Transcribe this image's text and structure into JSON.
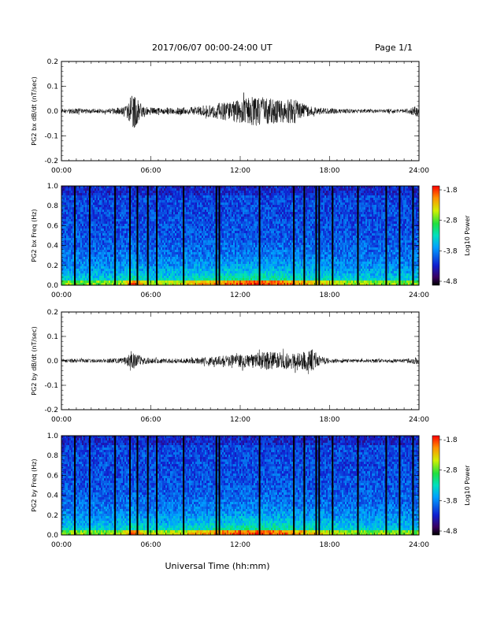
{
  "header": {
    "title": "2017/06/07  00:00-24:00 UT",
    "page": "Page 1/1"
  },
  "footer": {
    "xlabel": "Universal Time (hh:mm)"
  },
  "chart_data": [
    {
      "type": "line",
      "name": "bx-waveform",
      "ylabel": "PG2 bx dB/dt (nT/sec)",
      "x_ticks": [
        "00:00",
        "06:00",
        "12:00",
        "18:00",
        "24:00"
      ],
      "y_ticks": [
        "0.2",
        "0.1",
        "0.0",
        "-0.1",
        "-0.2"
      ],
      "xlim_hours": [
        0,
        24
      ],
      "ylim": [
        -0.2,
        0.2
      ],
      "envelope": {
        "x_hours": [
          0,
          1,
          2,
          3,
          4,
          4.5,
          4.8,
          5.2,
          5.6,
          6,
          7,
          8,
          9,
          10,
          11,
          12,
          12.5,
          13,
          14,
          15,
          15.5,
          16,
          16.5,
          17,
          18,
          19,
          20,
          21,
          22,
          23,
          23.9,
          24
        ],
        "amplitude": [
          0.012,
          0.015,
          0.012,
          0.014,
          0.02,
          0.05,
          0.11,
          0.05,
          0.025,
          0.02,
          0.018,
          0.02,
          0.025,
          0.035,
          0.05,
          0.065,
          0.07,
          0.08,
          0.07,
          0.06,
          0.075,
          0.05,
          0.03,
          0.02,
          0.015,
          0.012,
          0.01,
          0.01,
          0.01,
          0.01,
          0.03,
          0.02
        ]
      }
    },
    {
      "type": "heatmap",
      "name": "bx-spectrogram",
      "ylabel": "PG2 bx Freq (Hz)",
      "x_ticks": [
        "00:00",
        "06:00",
        "12:00",
        "18:00",
        "24:00"
      ],
      "y_ticks": [
        "1.0",
        "0.8",
        "0.6",
        "0.4",
        "0.2",
        "0.0"
      ],
      "ylim": [
        0,
        1.0
      ],
      "colorbar": {
        "label": "Log10 Power",
        "ticks": [
          "-1.8",
          "-2.8",
          "-3.8",
          "-4.8"
        ],
        "range": [
          -4.8,
          -1.8
        ]
      },
      "gap_lines_hours": [
        0.9,
        1.9,
        3.6,
        4.6,
        5.1,
        5.8,
        6.4,
        8.2,
        10.4,
        10.6,
        13.3,
        15.6,
        16.3,
        17.1,
        17.3,
        18.2,
        19.9,
        21.8,
        22.7,
        23.6
      ]
    },
    {
      "type": "line",
      "name": "by-waveform",
      "ylabel": "PG2 by dB/dt (nT/sec)",
      "x_ticks": [
        "00:00",
        "06:00",
        "12:00",
        "18:00",
        "24:00"
      ],
      "y_ticks": [
        "0.2",
        "0.1",
        "0.0",
        "-0.1",
        "-0.2"
      ],
      "xlim_hours": [
        0,
        24
      ],
      "ylim": [
        -0.2,
        0.2
      ],
      "envelope": {
        "x_hours": [
          0,
          1,
          2,
          3,
          4,
          4.5,
          4.7,
          5.0,
          5.5,
          6,
          7,
          8,
          9,
          10,
          11,
          12,
          13,
          14,
          15,
          16,
          16.5,
          16.8,
          17.2,
          18,
          19,
          20,
          21,
          22,
          23,
          23.9,
          24
        ],
        "amplitude": [
          0.01,
          0.012,
          0.01,
          0.012,
          0.015,
          0.03,
          0.06,
          0.04,
          0.02,
          0.015,
          0.012,
          0.012,
          0.015,
          0.025,
          0.03,
          0.035,
          0.045,
          0.05,
          0.045,
          0.045,
          0.055,
          0.065,
          0.03,
          0.012,
          0.01,
          0.01,
          0.01,
          0.01,
          0.01,
          0.02,
          0.012
        ]
      }
    },
    {
      "type": "heatmap",
      "name": "by-spectrogram",
      "ylabel": "PG2 by Freq (Hz)",
      "x_ticks": [
        "00:00",
        "06:00",
        "12:00",
        "18:00",
        "24:00"
      ],
      "y_ticks": [
        "1.0",
        "0.8",
        "0.6",
        "0.4",
        "0.2",
        "0.0"
      ],
      "ylim": [
        0,
        1.0
      ],
      "colorbar": {
        "label": "Log10 Power",
        "ticks": [
          "-1.8",
          "-2.8",
          "-3.8",
          "-4.8"
        ],
        "range": [
          -4.8,
          -1.8
        ]
      },
      "gap_lines_hours": [
        0.9,
        1.9,
        3.6,
        4.6,
        5.1,
        5.8,
        6.4,
        8.2,
        10.4,
        10.6,
        13.3,
        15.6,
        16.3,
        17.1,
        17.3,
        18.2,
        19.9,
        21.8,
        22.7,
        23.6
      ]
    }
  ]
}
